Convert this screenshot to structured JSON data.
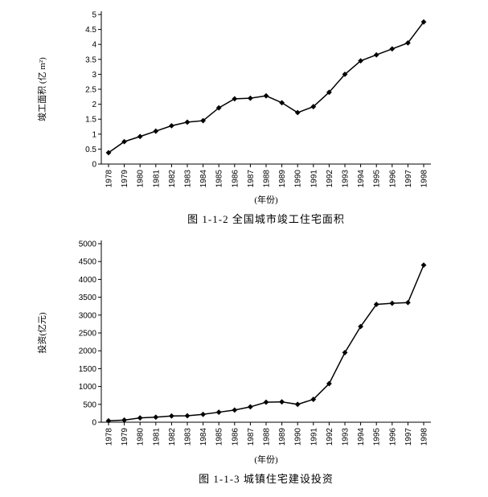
{
  "chart_data": [
    {
      "type": "line",
      "title": "图 1-1-2  全国城市竣工住宅面积",
      "ylabel": "竣工面积 (亿 m²)",
      "xlabel": "(年份)",
      "categories": [
        "1978",
        "1979",
        "1980",
        "1981",
        "1982",
        "1983",
        "1984",
        "1985",
        "1986",
        "1987",
        "1988",
        "1989",
        "1990",
        "1991",
        "1992",
        "1993",
        "1994",
        "1995",
        "1996",
        "1997",
        "1998"
      ],
      "values": [
        0.38,
        0.75,
        0.92,
        1.1,
        1.28,
        1.4,
        1.45,
        1.88,
        2.18,
        2.2,
        2.28,
        2.05,
        1.72,
        1.92,
        2.4,
        3.0,
        3.45,
        3.65,
        3.85,
        4.05,
        4.75
      ],
      "ylim": [
        0,
        5
      ],
      "yticks": [
        0,
        0.5,
        1,
        1.5,
        2,
        2.5,
        3,
        3.5,
        4,
        4.5,
        5
      ],
      "marker": "diamond",
      "line_color": "#000000",
      "grid": false
    },
    {
      "type": "line",
      "title": "图 1-1-3  城镇住宅建设投资",
      "ylabel": "投资(亿元)",
      "xlabel": "(年份)",
      "categories": [
        "1978",
        "1979",
        "1980",
        "1981",
        "1982",
        "1983",
        "1984",
        "1985",
        "1986",
        "1987",
        "1988",
        "1989",
        "1990",
        "1991",
        "1992",
        "1993",
        "1994",
        "1995",
        "1996",
        "1997",
        "1998"
      ],
      "values": [
        40,
        60,
        120,
        140,
        175,
        180,
        220,
        280,
        340,
        430,
        560,
        570,
        500,
        640,
        1080,
        1950,
        2680,
        3300,
        3330,
        3350,
        4400
      ],
      "ylim": [
        0,
        5000
      ],
      "yticks": [
        0,
        500,
        1000,
        1500,
        2000,
        2500,
        3000,
        3500,
        4000,
        4500,
        5000
      ],
      "marker": "diamond",
      "line_color": "#000000",
      "grid": false
    }
  ]
}
